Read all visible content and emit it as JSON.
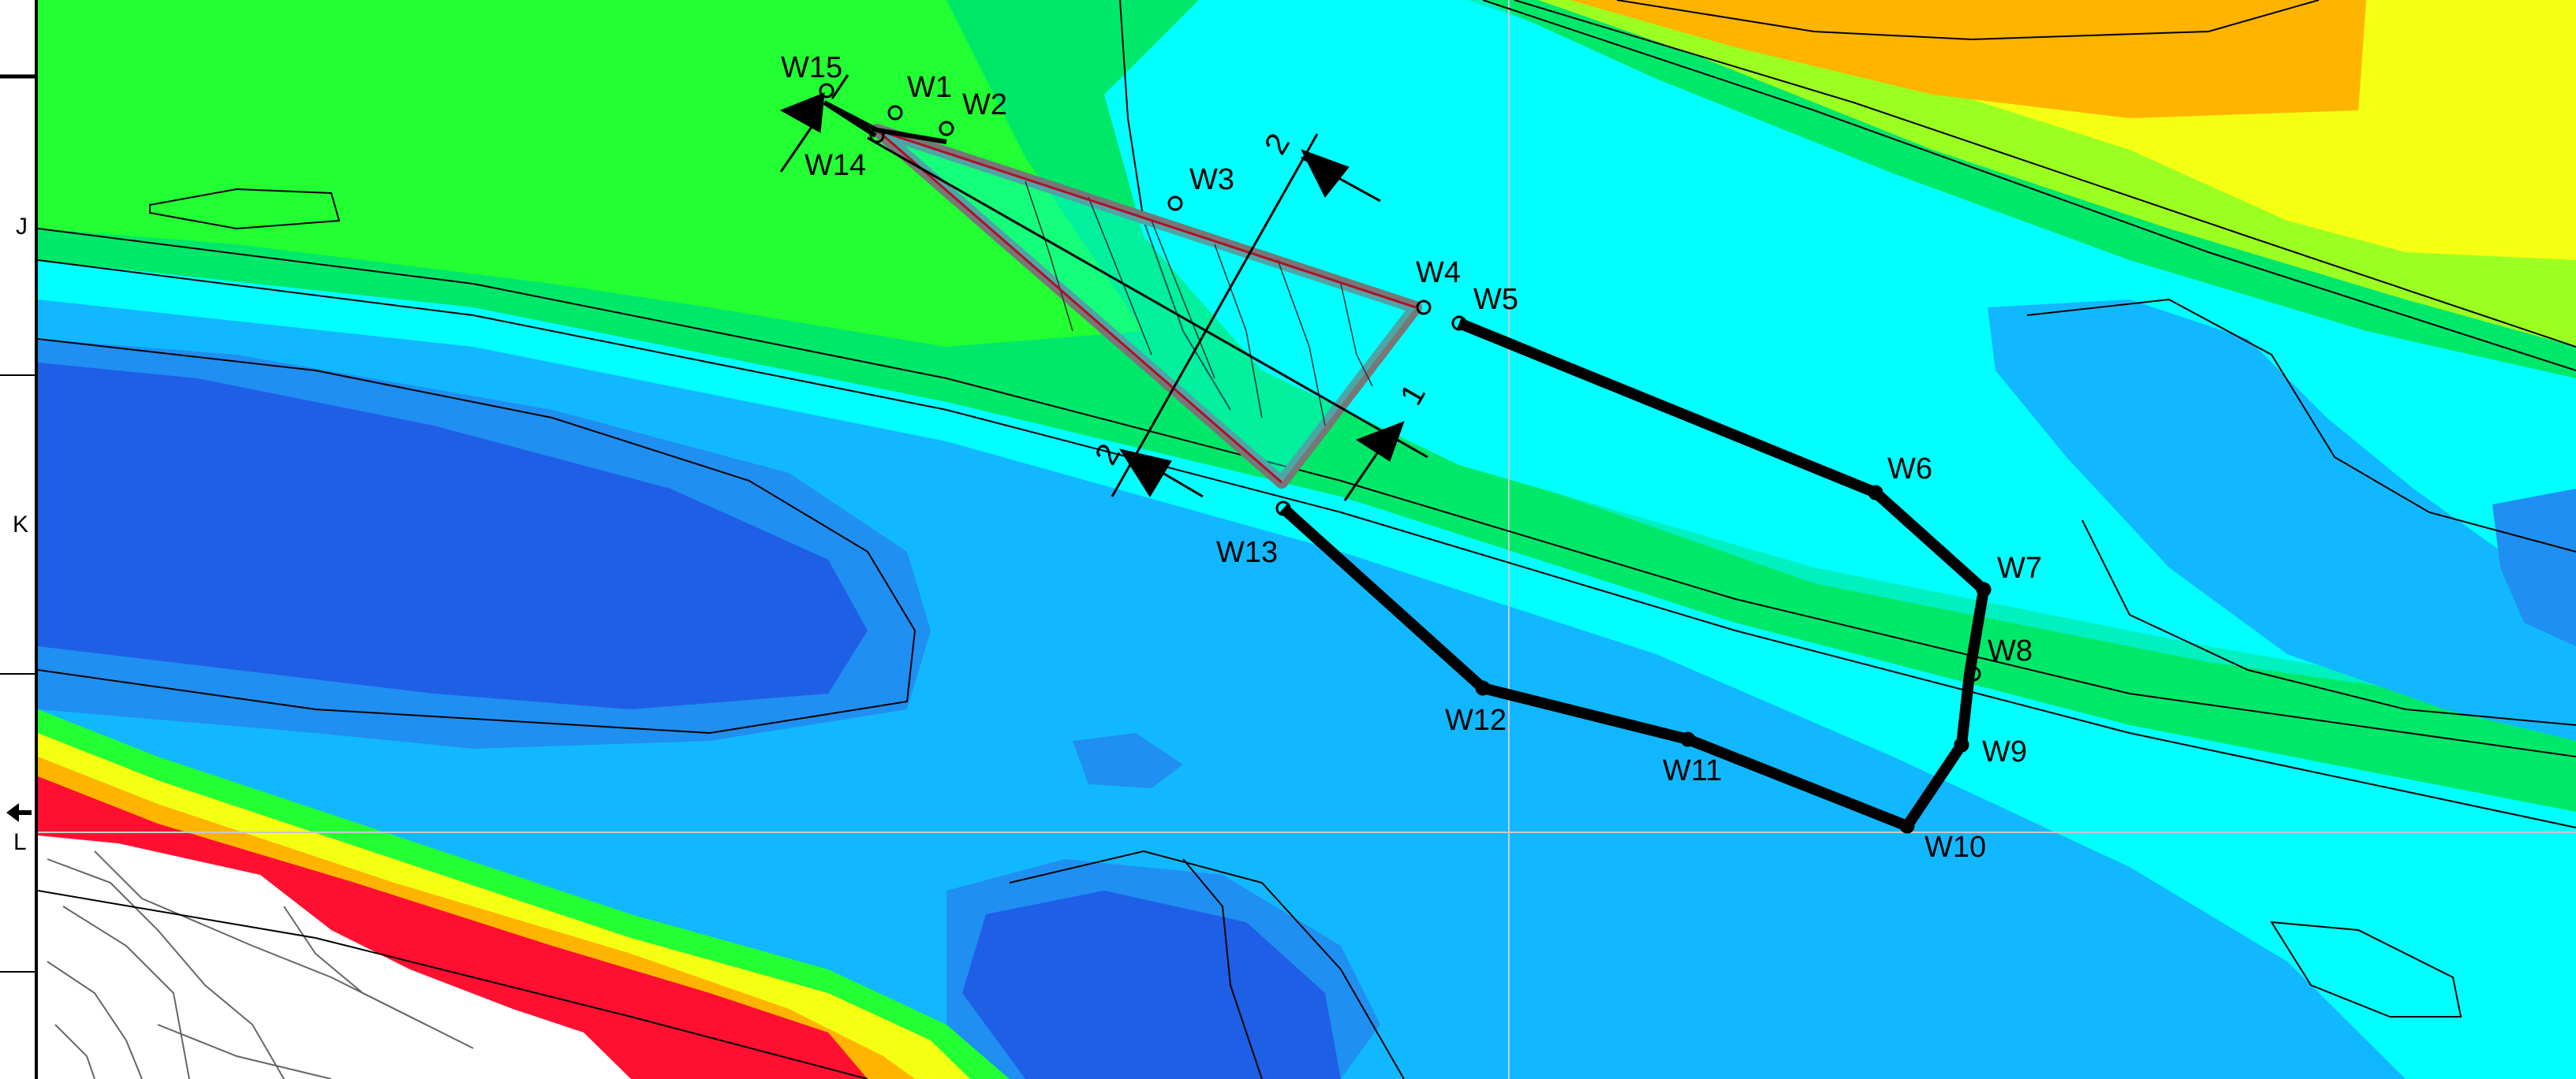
{
  "colors": {
    "deep_blue": "#1f5fe6",
    "blue": "#1f8ff2",
    "light_blue": "#12b8ff",
    "cyan": "#00ffff",
    "aqua": "#00f0c0",
    "green": "#00e86a",
    "bright_green": "#22ff33",
    "lime": "#9cff22",
    "yellow": "#f5ff12",
    "orange": "#ffb400",
    "red": "#ff1030",
    "route": "#000000",
    "section_outline": "#777777"
  },
  "axis_labels": [
    "J",
    "K",
    "L"
  ],
  "waypoints": [
    {
      "name": "W1"
    },
    {
      "name": "W2"
    },
    {
      "name": "W3"
    },
    {
      "name": "W4"
    },
    {
      "name": "W5"
    },
    {
      "name": "W6"
    },
    {
      "name": "W7"
    },
    {
      "name": "W8"
    },
    {
      "name": "W9"
    },
    {
      "name": "W10"
    },
    {
      "name": "W11"
    },
    {
      "name": "W12"
    },
    {
      "name": "W13"
    },
    {
      "name": "W14"
    },
    {
      "name": "W15"
    }
  ],
  "section_labels": [
    "2",
    "1",
    "2"
  ]
}
